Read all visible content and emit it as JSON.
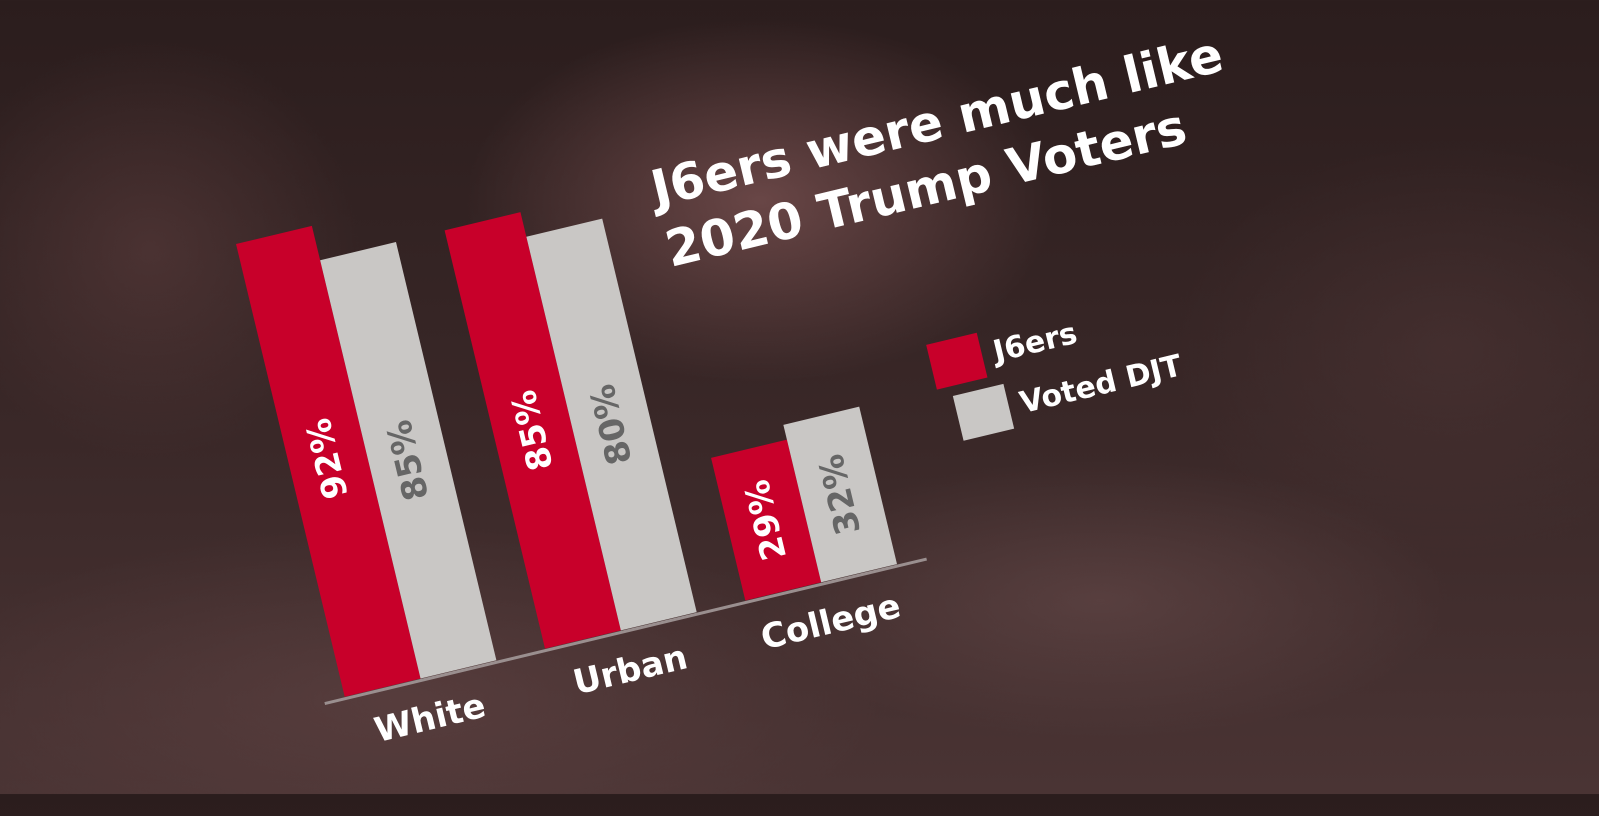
{
  "chart_data": {
    "type": "bar",
    "title": "J6ers were much like 2020 Trump Voters",
    "title_lines": [
      "J6ers were much like",
      "2020 Trump Voters"
    ],
    "categories": [
      "White",
      "Urban",
      "College"
    ],
    "series": [
      {
        "name": "J6ers",
        "values": [
          92,
          85,
          29
        ],
        "labels": [
          "92%",
          "85%",
          "29%"
        ],
        "color": "#c8002a",
        "label_color": "#ffffff"
      },
      {
        "name": "Voted DJT",
        "values": [
          85,
          80,
          32
        ],
        "labels": [
          "85%",
          "80%",
          "32%"
        ],
        "color": "#c9c7c5",
        "label_color": "#666666"
      }
    ],
    "ylim": [
      0,
      100
    ],
    "xlabel": "",
    "ylabel": "",
    "grid": false,
    "legend": "right"
  }
}
